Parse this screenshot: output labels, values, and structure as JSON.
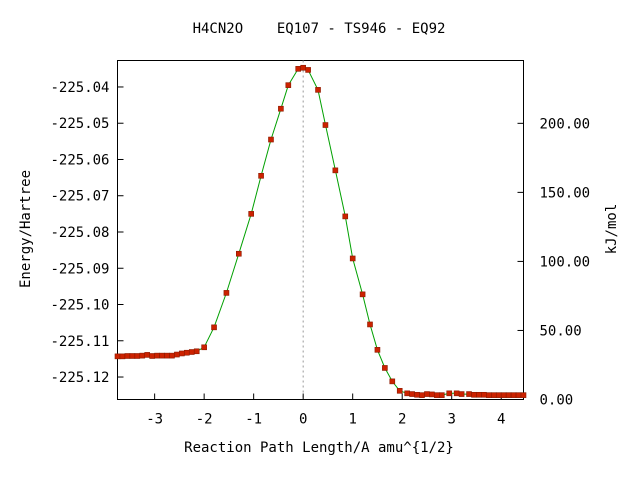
{
  "chart_data": {
    "type": "line",
    "title": "H4CN2O    EQ107 - TS946 - EQ92",
    "xlabel": "Reaction Path Length/A amu^{1/2}",
    "ylabel": "Energy/Hartree",
    "y2label": "kJ/mol",
    "xlim": [
      -3.75,
      4.45
    ],
    "ylim": [
      -225.1262,
      -225.0327
    ],
    "y2lim": [
      0.0,
      245.5
    ],
    "grid": false,
    "legend": "none",
    "x_ticks": [
      {
        "value": -3,
        "label": "-3"
      },
      {
        "value": -2,
        "label": "-2"
      },
      {
        "value": -1,
        "label": "-1"
      },
      {
        "value": 0,
        "label": "0"
      },
      {
        "value": 1,
        "label": "1"
      },
      {
        "value": 2,
        "label": "2"
      },
      {
        "value": 3,
        "label": "3"
      },
      {
        "value": 4,
        "label": "4"
      }
    ],
    "y_ticks": [
      {
        "value": -225.04,
        "label": "-225.04"
      },
      {
        "value": -225.05,
        "label": "-225.05"
      },
      {
        "value": -225.06,
        "label": "-225.06"
      },
      {
        "value": -225.07,
        "label": "-225.07"
      },
      {
        "value": -225.08,
        "label": "-225.08"
      },
      {
        "value": -225.09,
        "label": "-225.09"
      },
      {
        "value": -225.1,
        "label": "-225.10"
      },
      {
        "value": -225.11,
        "label": "-225.11"
      },
      {
        "value": -225.12,
        "label": "-225.12"
      }
    ],
    "y2_ticks": [
      {
        "value": 0,
        "label": "0.00"
      },
      {
        "value": 50,
        "label": "50.00"
      },
      {
        "value": 100,
        "label": "100.00"
      },
      {
        "value": 150,
        "label": "150.00"
      },
      {
        "value": 200,
        "label": "200.00"
      }
    ],
    "ts_marker_x": 0.0,
    "colors": {
      "line": "#00a000",
      "marker": "#cc2200",
      "marker_edge": "#8b1a00",
      "ts_line": "#999999"
    },
    "series": [
      {
        "x": [
          -3.75,
          -3.65,
          -3.55,
          -3.45,
          -3.35,
          -3.25,
          -3.15,
          -3.05,
          -2.95,
          -2.85,
          -2.75,
          -2.65,
          -2.55,
          -2.45,
          -2.35,
          -2.25,
          -2.15,
          -2.0,
          -1.8,
          -1.55,
          -1.3,
          -1.05,
          -0.85,
          -0.65,
          -0.45,
          -0.3,
          -0.1,
          0.0,
          0.1,
          0.3,
          0.45,
          0.65,
          0.85,
          1.0,
          1.2,
          1.35,
          1.5,
          1.65,
          1.8,
          1.95,
          2.1,
          2.2,
          2.3,
          2.4,
          2.5,
          2.6,
          2.7,
          2.8,
          2.95,
          3.1,
          3.2,
          3.35,
          3.45,
          3.55,
          3.65,
          3.75,
          3.85,
          3.95,
          4.05,
          4.15,
          4.25,
          4.35,
          4.45
        ],
        "y": [
          -225.1143,
          -225.1143,
          -225.1142,
          -225.1142,
          -225.1142,
          -225.1141,
          -225.1139,
          -225.1142,
          -225.1141,
          -225.1141,
          -225.1141,
          -225.1141,
          -225.1138,
          -225.1135,
          -225.1133,
          -225.1131,
          -225.1129,
          -225.1118,
          -225.1063,
          -225.0968,
          -225.086,
          -225.075,
          -225.0645,
          -225.0545,
          -225.046,
          -225.0395,
          -225.035,
          -225.0347,
          -225.0353,
          -225.0408,
          -225.0505,
          -225.063,
          -225.0757,
          -225.0873,
          -225.0972,
          -225.1055,
          -225.1125,
          -225.1175,
          -225.1212,
          -225.1238,
          -225.1245,
          -225.1247,
          -225.1249,
          -225.125,
          -225.1247,
          -225.1248,
          -225.125,
          -225.125,
          -225.1245,
          -225.1245,
          -225.1247,
          -225.1247,
          -225.1249,
          -225.1249,
          -225.1249,
          -225.125,
          -225.125,
          -225.125,
          -225.125,
          -225.125,
          -225.125,
          -225.125,
          -225.125
        ]
      }
    ]
  }
}
